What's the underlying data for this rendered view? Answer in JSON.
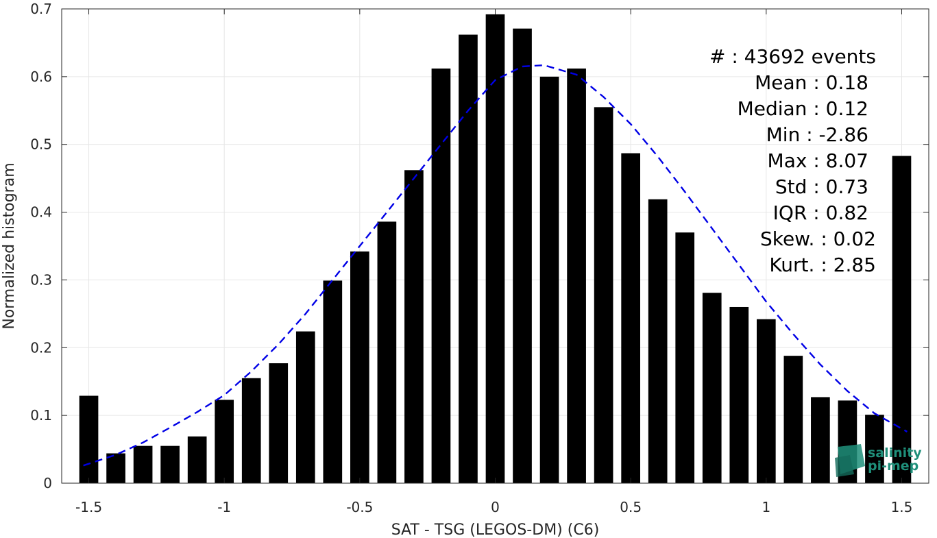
{
  "chart_data": {
    "type": "bar",
    "xlabel": "SAT - TSG (LEGOS-DM) (C6)",
    "ylabel": "Normalized histogram",
    "xlim": [
      -1.6,
      1.6
    ],
    "ylim": [
      0,
      0.7
    ],
    "xticks": [
      -1.5,
      -1,
      -0.5,
      0,
      0.5,
      1,
      1.5
    ],
    "xtick_labels": [
      "-1.5",
      "-1",
      "-0.5",
      "0",
      "0.5",
      "1",
      "1.5"
    ],
    "yticks": [
      0,
      0.1,
      0.2,
      0.3,
      0.4,
      0.5,
      0.6,
      0.7
    ],
    "ytick_labels": [
      "0",
      "0.1",
      "0.2",
      "0.3",
      "0.4",
      "0.5",
      "0.6",
      "0.7"
    ],
    "grid": true,
    "bar_width": 0.07,
    "bar_color": "#000000",
    "bins": [
      {
        "x": -1.5,
        "y": 0.129
      },
      {
        "x": -1.4,
        "y": 0.044
      },
      {
        "x": -1.3,
        "y": 0.055
      },
      {
        "x": -1.2,
        "y": 0.055
      },
      {
        "x": -1.1,
        "y": 0.069
      },
      {
        "x": -1.0,
        "y": 0.123
      },
      {
        "x": -0.9,
        "y": 0.155
      },
      {
        "x": -0.8,
        "y": 0.177
      },
      {
        "x": -0.7,
        "y": 0.224
      },
      {
        "x": -0.6,
        "y": 0.299
      },
      {
        "x": -0.5,
        "y": 0.342
      },
      {
        "x": -0.4,
        "y": 0.386
      },
      {
        "x": -0.3,
        "y": 0.462
      },
      {
        "x": -0.2,
        "y": 0.612
      },
      {
        "x": -0.1,
        "y": 0.662
      },
      {
        "x": 0.0,
        "y": 0.692
      },
      {
        "x": 0.1,
        "y": 0.671
      },
      {
        "x": 0.2,
        "y": 0.6
      },
      {
        "x": 0.3,
        "y": 0.612
      },
      {
        "x": 0.4,
        "y": 0.555
      },
      {
        "x": 0.5,
        "y": 0.487
      },
      {
        "x": 0.6,
        "y": 0.419
      },
      {
        "x": 0.7,
        "y": 0.37
      },
      {
        "x": 0.8,
        "y": 0.281
      },
      {
        "x": 0.9,
        "y": 0.26
      },
      {
        "x": 1.0,
        "y": 0.242
      },
      {
        "x": 1.1,
        "y": 0.188
      },
      {
        "x": 1.2,
        "y": 0.127
      },
      {
        "x": 1.3,
        "y": 0.122
      },
      {
        "x": 1.4,
        "y": 0.101
      },
      {
        "x": 1.5,
        "y": 0.483
      }
    ],
    "fit_curve": {
      "style": "dashed",
      "color": "#0000e6",
      "points": [
        [
          -1.52,
          0.026
        ],
        [
          -1.4,
          0.042
        ],
        [
          -1.3,
          0.06
        ],
        [
          -1.2,
          0.082
        ],
        [
          -1.1,
          0.105
        ],
        [
          -1.0,
          0.13
        ],
        [
          -0.9,
          0.165
        ],
        [
          -0.8,
          0.205
        ],
        [
          -0.7,
          0.25
        ],
        [
          -0.6,
          0.3
        ],
        [
          -0.5,
          0.35
        ],
        [
          -0.4,
          0.4
        ],
        [
          -0.3,
          0.45
        ],
        [
          -0.2,
          0.5
        ],
        [
          -0.1,
          0.55
        ],
        [
          0.0,
          0.595
        ],
        [
          0.1,
          0.615
        ],
        [
          0.18,
          0.617
        ],
        [
          0.3,
          0.603
        ],
        [
          0.4,
          0.57
        ],
        [
          0.5,
          0.53
        ],
        [
          0.6,
          0.482
        ],
        [
          0.7,
          0.43
        ],
        [
          0.8,
          0.376
        ],
        [
          0.9,
          0.322
        ],
        [
          1.0,
          0.268
        ],
        [
          1.1,
          0.22
        ],
        [
          1.2,
          0.175
        ],
        [
          1.3,
          0.136
        ],
        [
          1.4,
          0.103
        ],
        [
          1.52,
          0.076
        ]
      ]
    },
    "stats": [
      {
        "label": "#  : 43692 events"
      },
      {
        "label": "Mean : 0.18"
      },
      {
        "label": "Median : 0.12"
      },
      {
        "label": "Min : -2.86"
      },
      {
        "label": "Max : 8.07"
      },
      {
        "label": "Std : 0.73"
      },
      {
        "label": "IQR : 0.82"
      },
      {
        "label": "Skew. : 0.02"
      },
      {
        "label": "Kurt. : 2.85"
      }
    ]
  },
  "logo": {
    "line1": "salinity",
    "line2": "pi-mep",
    "color": "#1f8f7a"
  }
}
